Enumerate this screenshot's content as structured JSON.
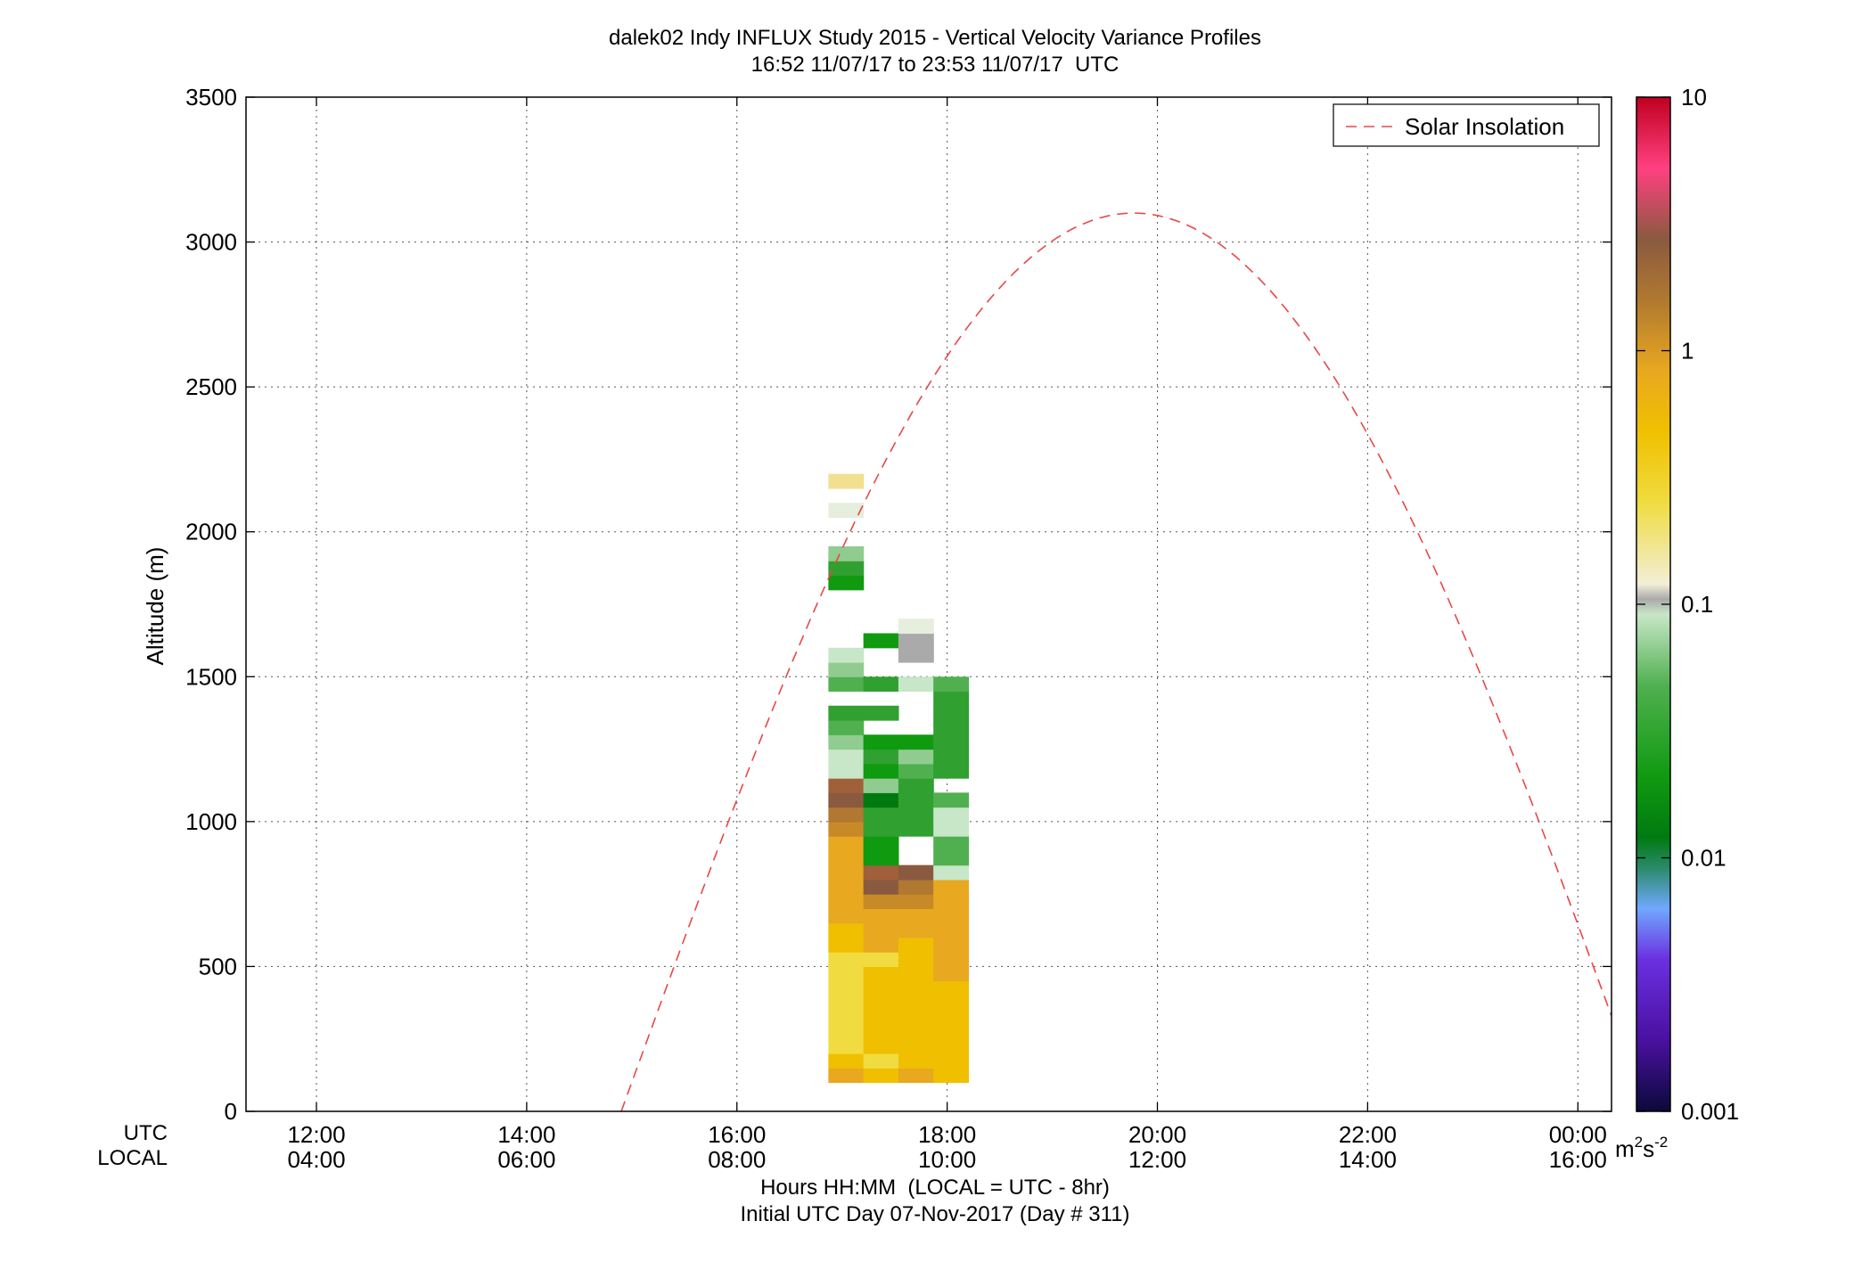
{
  "chart_data": {
    "type": "heatmap",
    "title": "dalek02 Indy INFLUX Study 2015 - Vertical Velocity Variance Profiles",
    "subtitle": "16:52 11/07/17 to 23:53 11/07/17  UTC",
    "ylabel": "Altitude (m)",
    "xlabel": "Hours HH:MM  (LOCAL = UTC - 8hr)",
    "xlabel2": "Initial UTC Day 07-Nov-2017 (Day # 311)",
    "x_row_labels": [
      "UTC",
      "LOCAL"
    ],
    "xlim_hours": [
      11.33,
      24.32
    ],
    "ylim": [
      0,
      3500
    ],
    "grid": true,
    "x_ticks": [
      {
        "hour": 12,
        "utc": "12:00",
        "local": "04:00"
      },
      {
        "hour": 14,
        "utc": "14:00",
        "local": "06:00"
      },
      {
        "hour": 16,
        "utc": "16:00",
        "local": "08:00"
      },
      {
        "hour": 18,
        "utc": "18:00",
        "local": "10:00"
      },
      {
        "hour": 20,
        "utc": "20:00",
        "local": "12:00"
      },
      {
        "hour": 22,
        "utc": "22:00",
        "local": "14:00"
      },
      {
        "hour": 24,
        "utc": "00:00",
        "local": "16:00"
      }
    ],
    "y_ticks": [
      0,
      500,
      1000,
      1500,
      2000,
      2500,
      3000,
      3500
    ],
    "colorbar": {
      "label": "m2s-2",
      "scale": "log",
      "range": [
        0.001,
        10
      ],
      "ticks": [
        "0.001",
        "0.01",
        "0.1",
        "1",
        "10"
      ],
      "stops": [
        [
          0.0,
          "#0a0a3a"
        ],
        [
          0.07,
          "#4a10a0"
        ],
        [
          0.15,
          "#6a30e0"
        ],
        [
          0.2,
          "#70a8ff"
        ],
        [
          0.24,
          "#2a8a6a"
        ],
        [
          0.27,
          "#007a10"
        ],
        [
          0.33,
          "#109a10"
        ],
        [
          0.42,
          "#50b050"
        ],
        [
          0.49,
          "#c8e6c8"
        ],
        [
          0.505,
          "#aaaaaa"
        ],
        [
          0.52,
          "#f2eed6"
        ],
        [
          0.6,
          "#f0dc40"
        ],
        [
          0.67,
          "#f0c000"
        ],
        [
          0.73,
          "#e8a820"
        ],
        [
          0.8,
          "#b07830"
        ],
        [
          0.86,
          "#8a5a40"
        ],
        [
          0.93,
          "#ff4080"
        ],
        [
          1.0,
          "#c00020"
        ]
      ]
    },
    "legend": {
      "entries": [
        "Solar Insolation"
      ],
      "location": "top-right"
    },
    "solar_insolation": {
      "start_hour": 14.9,
      "end_hour": 24.65,
      "peak_hour": 19.78,
      "peak_altitude": 3100
    },
    "cells": {
      "x_start_hour": 16.87,
      "dx_hours": 0.333,
      "y_start_m": 100,
      "dy_m": 50,
      "columns": [
        [
          17,
          16,
          15,
          15,
          15,
          15,
          15,
          15,
          15,
          16,
          16,
          17,
          17,
          17,
          17,
          17,
          17,
          18,
          19,
          20,
          21,
          10,
          10,
          9,
          8,
          7,
          -1,
          8,
          9,
          10,
          -1,
          -1,
          -1,
          -1,
          6,
          7,
          9,
          -1,
          -1,
          11,
          -1,
          14,
          -1,
          -1,
          -1,
          -1,
          -1,
          -1,
          -1,
          -1,
          -1,
          -1,
          -1,
          -1,
          -1,
          -1,
          -1,
          -1,
          -1,
          -1,
          -1,
          -1,
          -1,
          -1,
          -1,
          -1,
          -1,
          -1
        ],
        [
          16,
          15,
          16,
          16,
          16,
          16,
          16,
          16,
          15,
          17,
          17,
          17,
          18,
          20,
          21,
          6,
          6,
          7,
          7,
          5,
          9,
          6,
          7,
          6,
          -1,
          7,
          -1,
          7,
          -1,
          -1,
          6,
          -1,
          -1,
          -1,
          -1,
          -1,
          -1,
          -1,
          -1,
          -1,
          -1,
          -1,
          -1,
          -1,
          -1,
          -1,
          -1,
          -1,
          -1,
          -1,
          -1,
          -1,
          -1,
          -1,
          -1,
          -1,
          -1,
          -1,
          -1,
          -1,
          -1,
          -1,
          -1,
          -1,
          -1,
          -1,
          -1,
          -1
        ],
        [
          17,
          16,
          16,
          16,
          16,
          16,
          16,
          16,
          16,
          16,
          17,
          17,
          18,
          19,
          20,
          -1,
          -1,
          7,
          7,
          7,
          7,
          8,
          9,
          6,
          -1,
          -1,
          -1,
          10,
          -1,
          12,
          12,
          11,
          -1,
          -1,
          -1,
          -1,
          -1,
          -1,
          -1,
          -1,
          -1,
          -1,
          -1,
          -1,
          -1,
          -1,
          -1,
          -1,
          -1,
          -1,
          -1,
          -1,
          -1,
          -1,
          -1,
          -1,
          -1,
          -1,
          -1,
          -1,
          -1,
          -1,
          -1,
          -1,
          -1,
          -1,
          -1,
          -1
        ],
        [
          16,
          16,
          16,
          16,
          16,
          16,
          16,
          17,
          17,
          17,
          17,
          17,
          17,
          17,
          10,
          8,
          8,
          10,
          10,
          8,
          -1,
          7,
          7,
          7,
          7,
          7,
          7,
          8,
          -1,
          -1,
          -1,
          -1,
          -1,
          -1,
          -1,
          -1,
          -1,
          -1,
          -1,
          -1,
          -1,
          -1,
          -1,
          -1,
          -1,
          -1,
          -1,
          -1,
          -1,
          -1,
          -1,
          -1,
          -1,
          -1,
          -1,
          -1,
          -1,
          -1,
          -1,
          -1,
          -1,
          -1,
          -1,
          -1,
          -1,
          -1,
          -1,
          -1
        ]
      ]
    }
  }
}
